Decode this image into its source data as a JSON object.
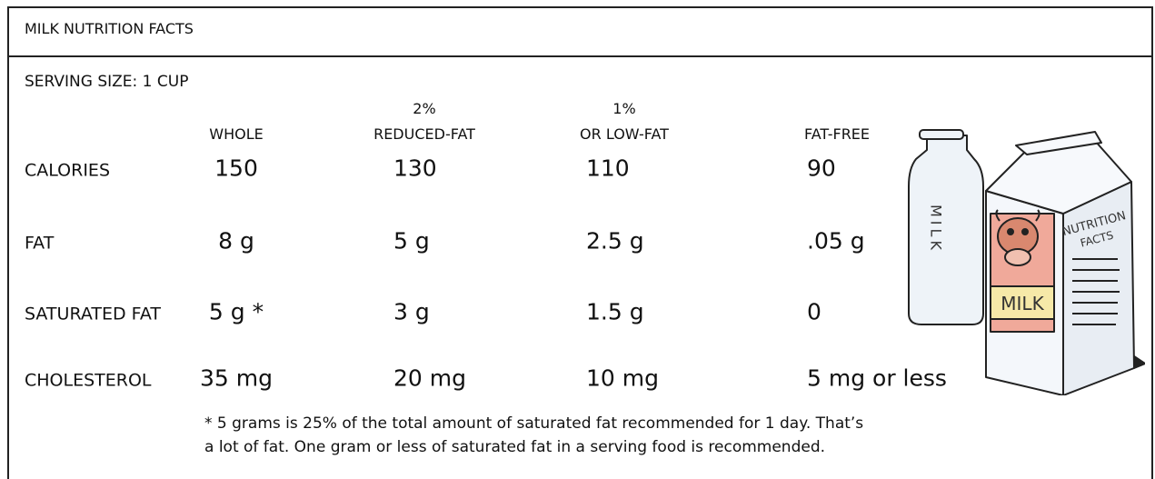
{
  "header": {
    "title": "MILK NUTRITION FACTS"
  },
  "serving_size": "SERVING SIZE: 1 CUP",
  "columns": [
    {
      "lines": [
        "WHOLE"
      ]
    },
    {
      "lines": [
        "2%",
        "REDUCED-FAT"
      ]
    },
    {
      "lines": [
        "1%",
        "OR LOW-FAT"
      ]
    },
    {
      "lines": [
        "FAT-FREE"
      ]
    }
  ],
  "rows": [
    {
      "label": "CALORIES",
      "values": [
        "150",
        "130",
        "110",
        "90"
      ]
    },
    {
      "label": "FAT",
      "values": [
        "8 g",
        "5 g",
        "2.5 g",
        ".05 g"
      ]
    },
    {
      "label": "SATURATED FAT",
      "values": [
        "5 g *",
        "3 g",
        "1.5 g",
        "0"
      ]
    },
    {
      "label": "CHOLESTEROL",
      "values": [
        "35 mg",
        "20 mg",
        "10 mg",
        "5 mg or less"
      ]
    }
  ],
  "footnote": [
    "* 5 grams is 25% of the total amount of saturated fat recommended for 1 day. That’s",
    "a lot of fat. One gram or less of saturated fat in a serving food is recommended."
  ],
  "illustration": {
    "bottle_text": "MILK",
    "carton_label": "MILK",
    "carton_panel": [
      "NUTRITION",
      "FACTS"
    ]
  }
}
